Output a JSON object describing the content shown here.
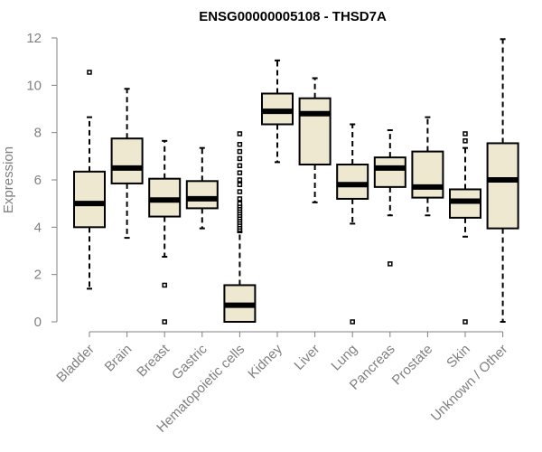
{
  "chart_data": {
    "type": "boxplot",
    "title": "ENSG00000005108 - THSD7A",
    "xlabel": "",
    "ylabel": "Expression",
    "ylim": [
      0,
      12
    ],
    "yticks": [
      0,
      2,
      4,
      6,
      8,
      10,
      12
    ],
    "categories": [
      "Bladder",
      "Brain",
      "Breast",
      "Gastric",
      "Hematopoietic cells",
      "Kidney",
      "Liver",
      "Lung",
      "Pancreas",
      "Prostate",
      "Skin",
      "Unknown / Other"
    ],
    "boxes": [
      {
        "category": "Bladder",
        "whisker_low": 1.4,
        "q1": 4.0,
        "median": 5.0,
        "q3": 6.35,
        "whisker_high": 8.65,
        "outliers": [
          10.55
        ]
      },
      {
        "category": "Brain",
        "whisker_low": 3.55,
        "q1": 5.85,
        "median": 6.5,
        "q3": 7.75,
        "whisker_high": 9.85,
        "outliers": []
      },
      {
        "category": "Breast",
        "whisker_low": 2.75,
        "q1": 4.45,
        "median": 5.15,
        "q3": 6.05,
        "whisker_high": 7.65,
        "outliers": [
          1.55,
          0.0
        ]
      },
      {
        "category": "Gastric",
        "whisker_low": 3.95,
        "q1": 4.8,
        "median": 5.2,
        "q3": 5.95,
        "whisker_high": 7.35,
        "outliers": []
      },
      {
        "category": "Hematopoietic cells",
        "whisker_low": 0.0,
        "q1": 0.0,
        "median": 0.7,
        "q3": 1.55,
        "whisker_high": 3.8,
        "outliers": [
          3.85,
          3.9,
          4.0,
          4.1,
          4.2,
          4.3,
          4.4,
          4.5,
          4.6,
          4.7,
          4.8,
          4.9,
          5.0,
          5.2,
          5.5,
          5.8,
          6.0,
          6.3,
          6.6,
          6.9,
          7.2,
          7.5,
          7.95
        ]
      },
      {
        "category": "Kidney",
        "whisker_low": 6.75,
        "q1": 8.35,
        "median": 8.9,
        "q3": 9.65,
        "whisker_high": 11.05,
        "outliers": []
      },
      {
        "category": "Liver",
        "whisker_low": 5.05,
        "q1": 6.65,
        "median": 8.8,
        "q3": 9.45,
        "whisker_high": 10.3,
        "outliers": []
      },
      {
        "category": "Lung",
        "whisker_low": 4.15,
        "q1": 5.2,
        "median": 5.8,
        "q3": 6.65,
        "whisker_high": 8.35,
        "outliers": [
          0.0
        ]
      },
      {
        "category": "Pancreas",
        "whisker_low": 4.5,
        "q1": 5.7,
        "median": 6.5,
        "q3": 6.95,
        "whisker_high": 8.1,
        "outliers": [
          2.45
        ]
      },
      {
        "category": "Prostate",
        "whisker_low": 4.5,
        "q1": 5.25,
        "median": 5.7,
        "q3": 7.2,
        "whisker_high": 8.65,
        "outliers": []
      },
      {
        "category": "Skin",
        "whisker_low": 3.6,
        "q1": 4.4,
        "median": 5.1,
        "q3": 5.6,
        "whisker_high": 7.35,
        "outliers": [
          7.65,
          7.95,
          0.0
        ]
      },
      {
        "category": "Unknown / Other",
        "whisker_low": 0.0,
        "q1": 3.95,
        "median": 6.0,
        "q3": 7.55,
        "whisker_high": 11.95,
        "outliers": []
      }
    ],
    "colors": {
      "box_fill": "#ede8cf",
      "box_stroke": "#000000",
      "axis": "#808080",
      "text": "#808080",
      "title": "#000000"
    }
  }
}
